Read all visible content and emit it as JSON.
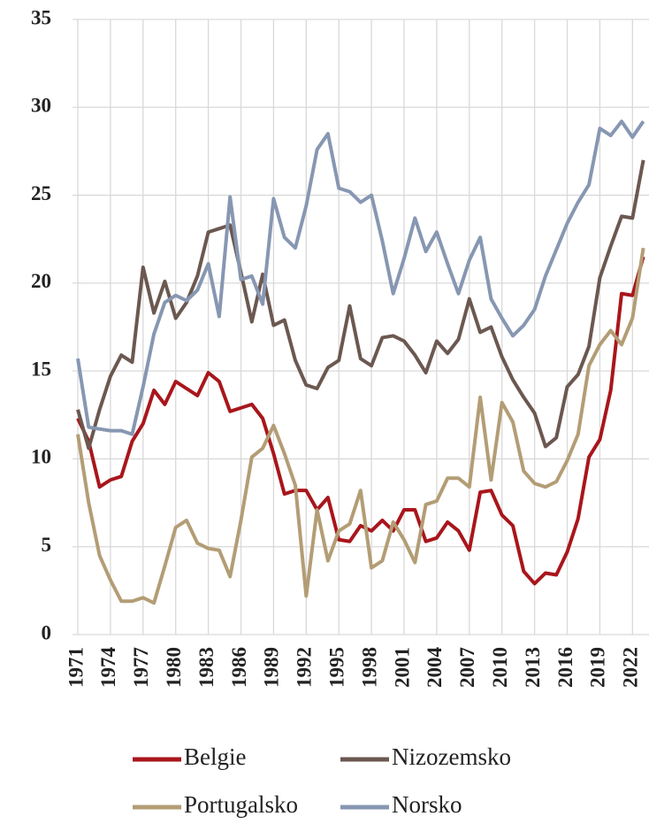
{
  "chart_data": {
    "type": "line",
    "categories": [
      "1971",
      null,
      null,
      "1974",
      null,
      null,
      "1977",
      null,
      null,
      "1980",
      null,
      null,
      "1983",
      null,
      null,
      "1986",
      null,
      null,
      "1989",
      null,
      null,
      "1992",
      null,
      null,
      "1995",
      null,
      null,
      "1998",
      null,
      null,
      "2001",
      null,
      null,
      "2004",
      null,
      null,
      "2007",
      null,
      null,
      "2010",
      null,
      null,
      "2013",
      null,
      null,
      "2016",
      null,
      null,
      "2019",
      null,
      null,
      "2022",
      null
    ],
    "series": [
      {
        "name": "Belgie",
        "color": "#a8161c",
        "values": [
          12.3,
          11,
          8.4,
          8.8,
          9,
          11,
          12,
          13.9,
          13.1,
          14.4,
          14,
          13.6,
          14.9,
          14.4,
          12.7,
          12.9,
          13.1,
          12.3,
          10.3,
          8,
          8.2,
          8.2,
          7.1,
          7.8,
          5.4,
          5.3,
          6.2,
          5.9,
          6.5,
          5.9,
          7.1,
          7.1,
          5.3,
          5.5,
          6.4,
          5.9,
          4.8,
          8.1,
          8.2,
          6.8,
          6.2,
          3.6,
          2.9,
          3.5,
          3.4,
          4.7,
          6.6,
          10.1,
          11.1,
          13.9,
          19.4,
          19.3,
          21.5
        ]
      },
      {
        "name": "Nizozemsko",
        "color": "#6b5850",
        "values": [
          12.8,
          10.6,
          12.8,
          14.7,
          15.9,
          15.5,
          20.9,
          18.3,
          20.1,
          18,
          18.9,
          20.4,
          22.9,
          23.1,
          23.3,
          20.6,
          17.8,
          20.5,
          17.6,
          17.9,
          15.6,
          14.2,
          14,
          15.2,
          15.6,
          18.7,
          15.7,
          15.3,
          16.9,
          17,
          16.7,
          15.9,
          14.9,
          16.7,
          16,
          16.8,
          19.1,
          17.2,
          17.5,
          15.8,
          14.5,
          13.5,
          12.6,
          10.7,
          11.2,
          14.1,
          14.8,
          16.4,
          20.3,
          22.1,
          23.8,
          23.7,
          27
        ]
      },
      {
        "name": "Portugalsko",
        "color": "#b39d75",
        "values": [
          11.4,
          7.5,
          4.5,
          3.1,
          1.9,
          1.9,
          2.1,
          1.8,
          3.9,
          6.1,
          6.5,
          5.2,
          4.9,
          4.8,
          3.3,
          6.5,
          10.1,
          10.6,
          11.9,
          10.3,
          8.5,
          2.2,
          7.1,
          4.2,
          5.9,
          6.3,
          8.2,
          3.8,
          4.2,
          6.4,
          5.4,
          4.1,
          7.4,
          7.6,
          8.9,
          8.9,
          8.4,
          13.5,
          8.8,
          13.2,
          12.1,
          9.3,
          8.6,
          8.4,
          8.7,
          9.9,
          11.4,
          15.3,
          16.5,
          17.3,
          16.5,
          18,
          22
        ]
      },
      {
        "name": "Norsko",
        "color": "#8797b2",
        "values": [
          15.7,
          11.8,
          11.7,
          11.6,
          11.6,
          11.4,
          14.1,
          17.1,
          18.9,
          19.3,
          19,
          19.6,
          21.1,
          18.1,
          24.9,
          20.2,
          20.4,
          18.8,
          24.8,
          22.6,
          22,
          24.4,
          27.6,
          28.5,
          25.4,
          25.2,
          24.6,
          25,
          22.4,
          19.4,
          21.4,
          23.7,
          21.8,
          22.9,
          21.1,
          19.4,
          21.3,
          22.6,
          19.1,
          18,
          17,
          17.6,
          18.5,
          20.4,
          21.9,
          23.4,
          24.6,
          25.6,
          28.8,
          28.4,
          29.2,
          28.3,
          29.2
        ]
      }
    ],
    "ylim": [
      0,
      35
    ],
    "yticks": [
      0,
      5,
      10,
      15,
      20,
      25,
      30,
      35
    ],
    "grid": true
  }
}
